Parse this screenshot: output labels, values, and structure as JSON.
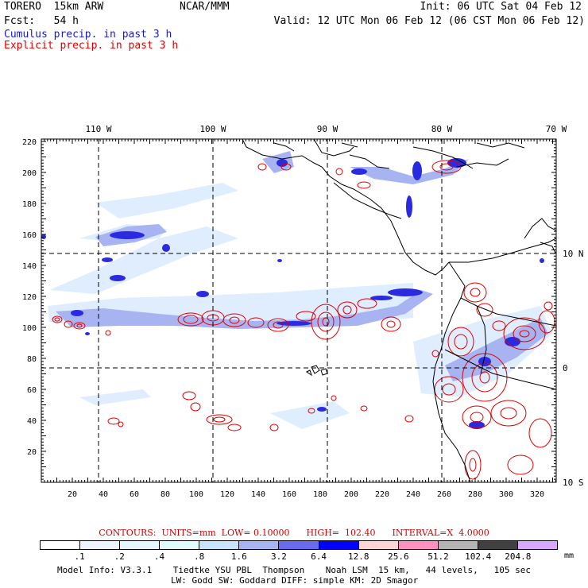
{
  "header": {
    "model": "TORERO  15km ARW",
    "org": "NCAR/MMM",
    "init": "Init: 06 UTC Sat 04 Feb 12",
    "fcst": "Fcst:   54 h",
    "valid": "Valid: 12 UTC Mon 06 Feb 12 (06 CST Mon 06 Feb 12)",
    "legend_cumulus": "Cumulus precip. in past 3 h",
    "legend_explicit": "Explicit precip. in past 3 h",
    "color_cumulus": "#1a1acc",
    "color_explicit": "#e00000"
  },
  "map": {
    "lon_labels": [
      "110 W",
      "100 W",
      "90 W",
      "80 W",
      "70 W"
    ],
    "lat_labels": [
      "10 N",
      "0",
      "10 S"
    ],
    "x_ticks": [
      "20",
      "40",
      "60",
      "80",
      "100",
      "120",
      "140",
      "160",
      "180",
      "200",
      "220",
      "240",
      "260",
      "280",
      "300",
      "320"
    ],
    "y_ticks": [
      "20",
      "40",
      "60",
      "80",
      "100",
      "120",
      "140",
      "160",
      "180",
      "200",
      "220"
    ]
  },
  "contours_line": "CONTOURS:  UNITS=mm  LOW= 0.10000      HIGH=  102.40      INTERVAL=X  4.0000",
  "colorbar": {
    "colors": [
      "#ffffff",
      "#eef4ff",
      "#e6f6ff",
      "#e0fbfb",
      "#c8e4fb",
      "#a8b4f2",
      "#6a6af0",
      "#0000ff",
      "#ffd4d4",
      "#ff90c0",
      "#b4b4b4",
      "#404040",
      "#d8a8ff"
    ],
    "labels": [
      ".1",
      ".2",
      ".4",
      ".8",
      "1.6",
      "3.2",
      "6.4",
      "12.8",
      "25.6",
      "51.2",
      "102.4",
      "204.8"
    ],
    "unit": "mm"
  },
  "footer": {
    "line1": "Model Info: V3.3.1    Tiedtke YSU PBL  Thompson    Noah LSM  15 km,   44 levels,   105 sec",
    "line2": "LW: Godd SW: Goddard DIFF: simple KM: 2D Smagor"
  }
}
